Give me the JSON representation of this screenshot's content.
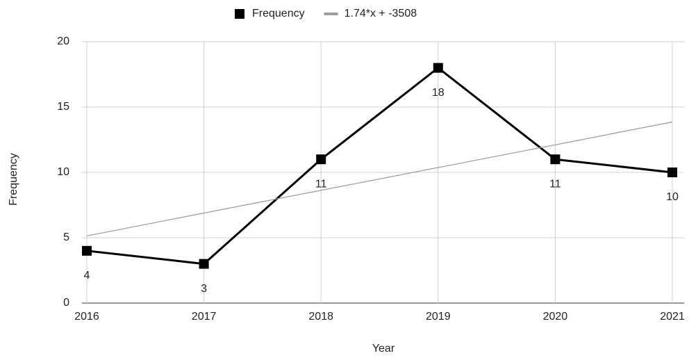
{
  "chart_data": {
    "type": "line",
    "x_label": "Year",
    "y_label": "Frequency",
    "x": [
      2016,
      2017,
      2018,
      2019,
      2020,
      2021
    ],
    "series": [
      {
        "name": "Frequency",
        "color": "#000000",
        "values": [
          4,
          3,
          11,
          18,
          11,
          10
        ],
        "markers": true,
        "data_labels": true
      },
      {
        "name": "1.74*x + -3508",
        "color": "#9e9e9e",
        "values": [
          5.14,
          6.89,
          8.63,
          10.37,
          12.11,
          13.86
        ],
        "markers": false,
        "data_labels": false
      }
    ],
    "xlim": [
      2016,
      2021
    ],
    "xticks": [
      2016,
      2017,
      2018,
      2019,
      2020,
      2021
    ],
    "ylim": [
      0,
      20
    ],
    "yticks": [
      0,
      5,
      10,
      15,
      20
    ],
    "grid": true,
    "legend": "top"
  }
}
